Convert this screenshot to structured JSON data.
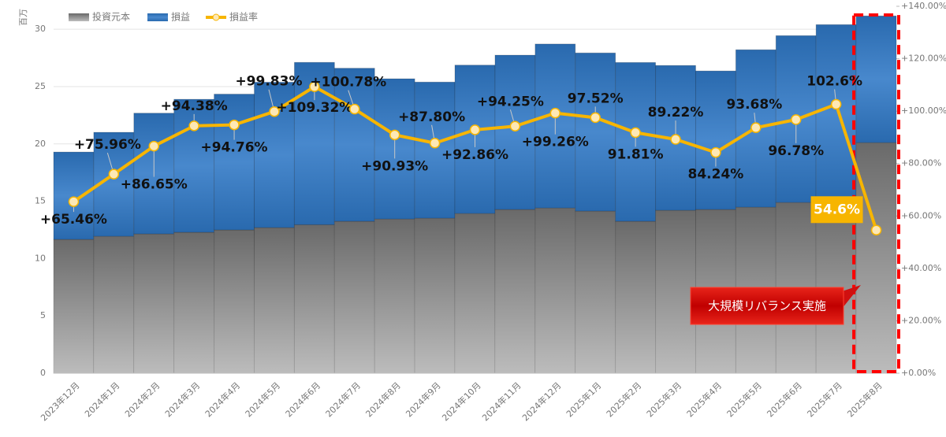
{
  "chart_data": {
    "type": "bar",
    "stacked": true,
    "ylabel": "百万",
    "categories": [
      "2023年12月",
      "2024年1月",
      "2024年2月",
      "2024年3月",
      "2024年4月",
      "2024年5月",
      "2024年6月",
      "2024年7月",
      "2024年8月",
      "2024年9月",
      "2024年10月",
      "2024年11月",
      "2024年12月",
      "2025年1月",
      "2025年2月",
      "2025年3月",
      "2025年4月",
      "2025年5月",
      "2025年6月",
      "2025年7月",
      "2025年8月"
    ],
    "series": [
      {
        "name": "投資元本",
        "type": "bar",
        "color": "#6a6a6a",
        "values": [
          11.67,
          11.94,
          12.15,
          12.29,
          12.5,
          12.7,
          12.95,
          13.25,
          13.45,
          13.52,
          13.93,
          14.28,
          14.41,
          14.14,
          13.25,
          14.21,
          14.28,
          14.48,
          14.89,
          14.96,
          20.11
        ]
      },
      {
        "name": "損益",
        "type": "bar",
        "color": "#2f78c6",
        "values": [
          7.62,
          9.07,
          10.53,
          11.6,
          11.84,
          12.68,
          14.16,
          13.35,
          12.23,
          11.87,
          12.94,
          13.46,
          14.3,
          13.79,
          13.85,
          12.63,
          12.08,
          13.73,
          14.55,
          15.44,
          11.05
        ]
      },
      {
        "name": "損益率",
        "type": "line",
        "axis": "y2",
        "color": "#f7b500",
        "values": [
          65.46,
          75.96,
          86.65,
          94.38,
          94.76,
          99.83,
          109.32,
          100.78,
          90.93,
          87.8,
          92.86,
          94.25,
          99.26,
          97.52,
          91.81,
          89.22,
          84.24,
          93.68,
          96.78,
          102.6,
          54.6
        ],
        "value_labels": [
          "+65.46%",
          "+75.96%",
          "+86.65%",
          "+94.38%",
          "+94.76%",
          "+99.83%",
          "+109.32%",
          "+100.78%",
          "+90.93%",
          "+87.80%",
          "+92.86%",
          "+94.25%",
          "+99.26%",
          "97.52%",
          "91.81%",
          "89.22%",
          "84.24%",
          "93.68%",
          "96.78%",
          "102.6%",
          "54.6%"
        ]
      }
    ],
    "ylim": [
      0,
      32
    ],
    "yticks": [
      0,
      5,
      10,
      15,
      20,
      25,
      30
    ],
    "y2lim": [
      0,
      140
    ],
    "y2ticks": [
      {
        "value": 0,
        "label": "+0.00%"
      },
      {
        "value": 20,
        "label": "+20.00%"
      },
      {
        "value": 40,
        "label": "+40.00%"
      },
      {
        "value": 60,
        "label": "+60.00%"
      },
      {
        "value": 80,
        "label": "+80.00%"
      },
      {
        "value": 100,
        "label": "+100.00%"
      },
      {
        "value": 120,
        "label": "+120.00%"
      },
      {
        "value": 140,
        "label": "+140.00%"
      }
    ],
    "grid": true,
    "legend": "upper left",
    "annotations": [
      {
        "text": "大規模リバランス実施"
      }
    ]
  }
}
